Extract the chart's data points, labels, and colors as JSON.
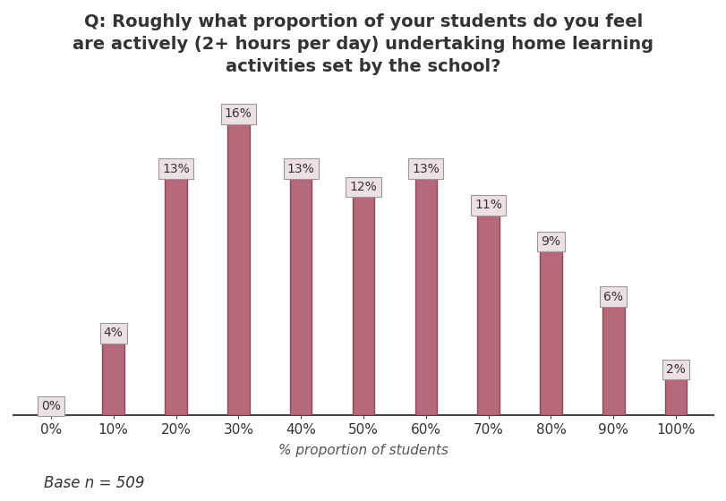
{
  "categories": [
    "0%",
    "10%",
    "20%",
    "30%",
    "40%",
    "50%",
    "60%",
    "70%",
    "80%",
    "90%",
    "100%"
  ],
  "values": [
    0,
    4,
    13,
    16,
    13,
    12,
    13,
    11,
    9,
    6,
    2
  ],
  "bar_color": "#b5697a",
  "bar_edge_color": "#8c4a5a",
  "label_bg_color": "#ede0e3",
  "label_edge_color": "#999999",
  "title_line1": "Q: Roughly what proportion of your students do you feel",
  "title_line2": "are actively (2+ hours per day) undertaking home learning",
  "title_line3": "activities set by the school?",
  "xlabel": "% proportion of students",
  "ylim": [
    0,
    18
  ],
  "base_text": "Base n = 509",
  "title_fontsize": 14,
  "label_fontsize": 10,
  "tick_fontsize": 11,
  "xlabel_fontsize": 11,
  "base_fontsize": 12,
  "bar_width": 0.35,
  "background_color": "#ffffff"
}
